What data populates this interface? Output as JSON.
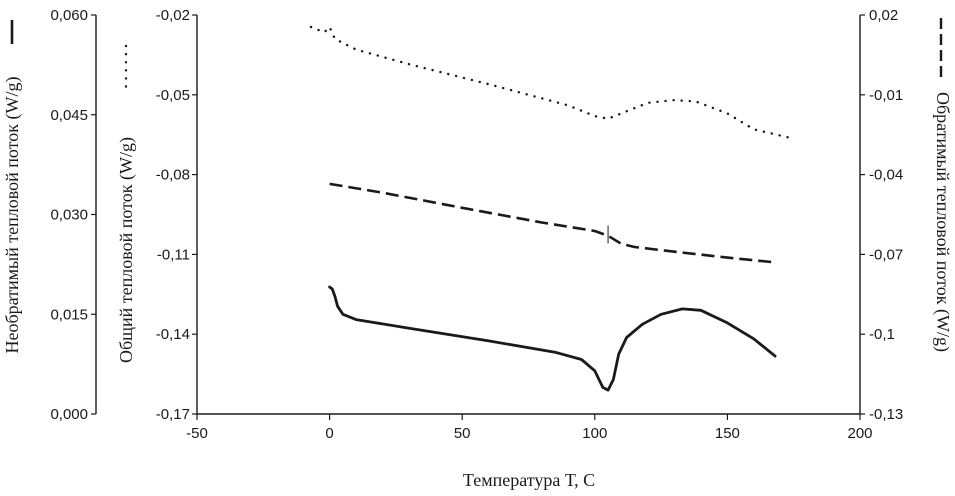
{
  "chart_data": {
    "type": "line",
    "xlabel": "Температура Т, С",
    "xlim": [
      -50,
      200
    ],
    "x_ticks": [
      "-50",
      "0",
      "50",
      "100",
      "150",
      "200"
    ],
    "axes": {
      "left_outer": {
        "label": "Необратимый тепловой поток (W/g)",
        "ylim": [
          0,
          0.06
        ],
        "ticks": [
          "0,000",
          "0,015",
          "0,030",
          "0,045",
          "0,060"
        ],
        "line_style": "solid"
      },
      "left_inner": {
        "label": "Общий тепловой поток (W/g)",
        "ylim": [
          -0.17,
          -0.02
        ],
        "ticks": [
          "-0,17",
          "-0,14",
          "-0,11",
          "-0,08",
          "-0,05",
          "-0,02"
        ],
        "line_style": "dotted"
      },
      "right": {
        "label": "Обратимый тепловой поток (W/g)",
        "ylim": [
          -0.13,
          0.02
        ],
        "ticks": [
          "-0,13",
          "-0,1",
          "-0,07",
          "-0,04",
          "-0,01",
          "0,02"
        ],
        "line_style": "dashed"
      }
    },
    "series": [
      {
        "axis": "left_outer",
        "style": "solid",
        "points": [
          [
            0,
            0.0191
          ],
          [
            1,
            0.0188
          ],
          [
            2,
            0.0177
          ],
          [
            3,
            0.0162
          ],
          [
            5,
            0.015
          ],
          [
            10,
            0.0142
          ],
          [
            30,
            0.0129
          ],
          [
            60,
            0.011
          ],
          [
            85,
            0.0093
          ],
          [
            95,
            0.0082
          ],
          [
            100,
            0.0065
          ],
          [
            103,
            0.004
          ],
          [
            105,
            0.0036
          ],
          [
            107,
            0.0052
          ],
          [
            109,
            0.009
          ],
          [
            112,
            0.0115
          ],
          [
            118,
            0.0135
          ],
          [
            125,
            0.015
          ],
          [
            133,
            0.0158
          ],
          [
            140,
            0.0156
          ],
          [
            150,
            0.0137
          ],
          [
            160,
            0.0113
          ],
          [
            168,
            0.0087
          ]
        ]
      },
      {
        "axis": "right",
        "style": "dashed",
        "points": [
          [
            0,
            -0.0435
          ],
          [
            20,
            -0.0468
          ],
          [
            50,
            -0.0525
          ],
          [
            80,
            -0.058
          ],
          [
            100,
            -0.0612
          ],
          [
            105,
            -0.063
          ],
          [
            110,
            -0.066
          ],
          [
            115,
            -0.0672
          ],
          [
            130,
            -0.069
          ],
          [
            150,
            -0.0712
          ],
          [
            168,
            -0.073
          ]
        ]
      },
      {
        "axis": "left_inner",
        "style": "dotted",
        "points": [
          [
            -7,
            -0.0245
          ],
          [
            -2,
            -0.0265
          ],
          [
            0,
            -0.0245
          ],
          [
            2,
            -0.029
          ],
          [
            10,
            -0.033
          ],
          [
            30,
            -0.0385
          ],
          [
            60,
            -0.046
          ],
          [
            90,
            -0.054
          ],
          [
            100,
            -0.058
          ],
          [
            105,
            -0.059
          ],
          [
            110,
            -0.057
          ],
          [
            120,
            -0.053
          ],
          [
            130,
            -0.052
          ],
          [
            138,
            -0.0525
          ],
          [
            150,
            -0.057
          ],
          [
            160,
            -0.063
          ],
          [
            173,
            -0.066
          ]
        ]
      }
    ]
  }
}
